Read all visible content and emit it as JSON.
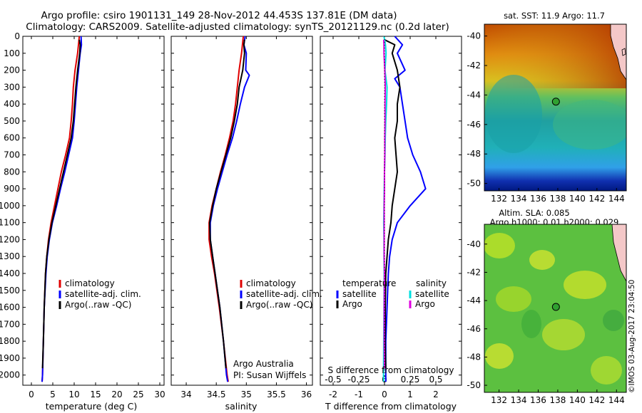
{
  "title_line1": "Argo profile: csiro 1901131_149 28-Nov-2012 44.453S 137.81E (DM data)",
  "title_line2": "Climatology: CARS2009. Satellite-adjusted climatology: synTS_20121129.nc (0.2d later)",
  "watermark": "©IMOS 03-Aug-2017 23:04:50",
  "colors": {
    "climatology": "#e00000",
    "satellite": "#0000ff",
    "argo": "#000000",
    "sal_satellite": "#00e0e0",
    "sal_argo": "#e000e0"
  },
  "chart_data": [
    {
      "type": "line",
      "xlabel": "temperature (deg C)",
      "ylabel": "",
      "xlim": [
        -2,
        31
      ],
      "ylim": [
        2060,
        0
      ],
      "xticks": [
        0,
        5,
        10,
        15,
        20,
        25,
        30
      ],
      "yticks": [
        0,
        100,
        200,
        300,
        400,
        500,
        600,
        700,
        800,
        900,
        1000,
        1100,
        1200,
        1300,
        1400,
        1500,
        1600,
        1700,
        1800,
        1900,
        2000
      ],
      "legend": [
        "climatology",
        "satellite-adj. clim.",
        "Argo(..raw -QC)"
      ],
      "series": [
        {
          "key": "climatology",
          "depth": [
            0,
            50,
            100,
            200,
            300,
            400,
            500,
            600,
            700,
            800,
            900,
            1000,
            1100,
            1200,
            1300,
            1400,
            1600,
            1800,
            2000,
            2040
          ],
          "values": [
            11.2,
            11.0,
            10.8,
            10.2,
            9.8,
            9.6,
            9.3,
            8.9,
            8.0,
            7.0,
            6.2,
            5.4,
            4.6,
            4.0,
            3.6,
            3.3,
            3.0,
            2.8,
            2.6,
            2.5
          ]
        },
        {
          "key": "satellite",
          "depth": [
            0,
            50,
            100,
            200,
            300,
            400,
            500,
            600,
            700,
            800,
            900,
            1000,
            1100,
            1200,
            1300,
            1400,
            1600,
            1800,
            2000,
            2040
          ],
          "values": [
            11.6,
            11.7,
            11.4,
            11.0,
            10.6,
            10.3,
            10.0,
            9.6,
            8.7,
            7.8,
            6.8,
            5.9,
            4.9,
            4.2,
            3.7,
            3.4,
            3.0,
            2.8,
            2.6,
            2.5
          ]
        },
        {
          "key": "argo",
          "depth": [
            20,
            50,
            100,
            200,
            300,
            400,
            500,
            600,
            700,
            800,
            900,
            1000,
            1100,
            1200,
            1300,
            1400,
            1600,
            1800,
            1960
          ],
          "values": [
            11.2,
            11.4,
            11.3,
            10.8,
            10.4,
            10.1,
            9.8,
            9.3,
            8.4,
            7.5,
            6.6,
            5.7,
            4.8,
            4.1,
            3.6,
            3.3,
            3.0,
            2.8,
            2.6
          ]
        }
      ]
    },
    {
      "type": "line",
      "xlabel": "salinity",
      "xlim": [
        33.75,
        36.1
      ],
      "ylim": [
        2060,
        0
      ],
      "xticks": [
        34,
        34.5,
        35,
        35.5,
        36
      ],
      "legend": [
        "climatology",
        "satellite-adj. clim.",
        "Argo(..raw -QC)"
      ],
      "annotation": [
        "Argo Australia",
        "PI: Susan Wijffels"
      ],
      "series": [
        {
          "key": "climatology",
          "depth": [
            0,
            100,
            200,
            300,
            400,
            500,
            600,
            700,
            800,
            900,
            1000,
            1100,
            1200,
            1300,
            1400,
            1600,
            1800,
            2000,
            2040
          ],
          "values": [
            34.95,
            34.92,
            34.88,
            34.85,
            34.82,
            34.78,
            34.72,
            34.65,
            34.57,
            34.5,
            34.43,
            34.38,
            34.38,
            34.42,
            34.47,
            34.55,
            34.62,
            34.68,
            34.7
          ]
        },
        {
          "key": "satellite",
          "depth": [
            0,
            50,
            100,
            200,
            230,
            300,
            400,
            500,
            600,
            700,
            800,
            900,
            1000,
            1100,
            1200,
            1300,
            1400,
            1600,
            1800,
            2000,
            2040
          ],
          "values": [
            34.98,
            34.96,
            35.0,
            34.99,
            35.05,
            34.97,
            34.9,
            34.84,
            34.77,
            34.68,
            34.6,
            34.52,
            34.45,
            34.4,
            34.4,
            34.44,
            34.48,
            34.56,
            34.62,
            34.67,
            34.69
          ]
        },
        {
          "key": "argo",
          "depth": [
            20,
            50,
            100,
            200,
            300,
            400,
            500,
            600,
            700,
            800,
            900,
            1000,
            1100,
            1200,
            1300,
            1400,
            1600,
            1800,
            1960
          ],
          "values": [
            34.97,
            34.96,
            34.97,
            34.94,
            34.88,
            34.85,
            34.8,
            34.74,
            34.66,
            34.58,
            34.5,
            34.44,
            34.39,
            34.4,
            34.44,
            34.48,
            34.56,
            34.62,
            34.66
          ]
        }
      ]
    },
    {
      "type": "line",
      "xlabel": "T difference from climatology",
      "xlabel2": "S difference from climatology",
      "xlim": [
        -2.5,
        3.0
      ],
      "ylim": [
        2060,
        0
      ],
      "xticks": [
        -2,
        -1,
        0,
        1,
        2
      ],
      "xticks2": [
        -0.5,
        -0.25,
        0,
        0.25,
        0.5
      ],
      "xticklabels2": [
        "-0.5",
        "-0.25",
        "0",
        "0.25",
        "0.5"
      ],
      "legend_headers": [
        "temperature",
        "salinity"
      ],
      "legend": [
        "satellite",
        "Argo",
        "satellite",
        "Argo"
      ],
      "series": [
        {
          "key": "satellite",
          "name": "satellite",
          "depth": [
            0,
            50,
            100,
            200,
            250,
            300,
            400,
            500,
            600,
            700,
            800,
            900,
            1000,
            1100,
            1200,
            1300,
            1400,
            1600,
            1800,
            2000,
            2040
          ],
          "values": [
            0.4,
            0.7,
            0.5,
            0.8,
            0.4,
            0.6,
            0.7,
            0.8,
            0.9,
            1.1,
            1.4,
            1.6,
            1.0,
            0.5,
            0.3,
            0.2,
            0.15,
            0.1,
            0.05,
            0.05,
            0.05
          ]
        },
        {
          "key": "argo",
          "name": "Argo",
          "depth": [
            20,
            50,
            100,
            200,
            300,
            400,
            500,
            600,
            700,
            800,
            900,
            1000,
            1100,
            1200,
            1300,
            1400,
            1600,
            1800,
            1960
          ],
          "values": [
            0.0,
            0.4,
            0.3,
            0.5,
            0.6,
            0.5,
            0.5,
            0.4,
            0.45,
            0.5,
            0.4,
            0.3,
            0.25,
            0.15,
            0.1,
            0.05,
            0.03,
            0.02,
            0.05
          ]
        },
        {
          "key": "sal_satellite",
          "name": "satellite",
          "depth": [
            0,
            50,
            100,
            200,
            300,
            400,
            500,
            600,
            700,
            800,
            900,
            1000,
            1100,
            1200,
            1300,
            1400,
            1600,
            1800,
            2000,
            2040
          ],
          "values": [
            -0.02,
            0.04,
            0.06,
            0.02,
            0.1,
            0.08,
            0.05,
            0.03,
            0.02,
            0.0,
            -0.01,
            -0.02,
            -0.03,
            -0.02,
            -0.02,
            -0.01,
            -0.02,
            -0.03,
            -0.04,
            -0.03
          ]
        },
        {
          "key": "sal_argo",
          "name": "Argo",
          "depth": [
            20,
            50,
            100,
            200,
            300,
            400,
            500,
            600,
            700,
            800,
            900,
            1000,
            1100,
            1200,
            1300,
            1400,
            1600,
            1800,
            1960
          ],
          "values": [
            -0.03,
            -0.02,
            -0.02,
            0.01,
            0.03,
            0.02,
            0.02,
            0.01,
            0.01,
            0.0,
            0.0,
            -0.01,
            -0.01,
            -0.01,
            -0.01,
            0.0,
            -0.01,
            -0.01,
            0.0
          ]
        }
      ]
    },
    {
      "type": "heatmap",
      "title": "sat. SST: 11.9 Argo: 11.7",
      "xlim": [
        130.5,
        145
      ],
      "ylim": [
        -50.5,
        -39.2
      ],
      "xticks": [
        132,
        134,
        136,
        138,
        140,
        142,
        144
      ],
      "yticks": [
        -40,
        -42,
        -44,
        -46,
        -48,
        -50
      ],
      "marker": {
        "lon": 137.81,
        "lat": -44.45
      }
    },
    {
      "type": "heatmap",
      "title": "Altim. SLA: 0.085",
      "subtitle": "Argo h1000: 0.01 h2000: 0.029",
      "xlim": [
        130.5,
        145
      ],
      "ylim": [
        -50.5,
        -38.6
      ],
      "xticks": [
        132,
        134,
        136,
        138,
        140,
        142,
        144
      ],
      "yticks": [
        -40,
        -42,
        -44,
        -46,
        -48,
        -50
      ],
      "marker": {
        "lon": 137.81,
        "lat": -44.45
      }
    }
  ]
}
